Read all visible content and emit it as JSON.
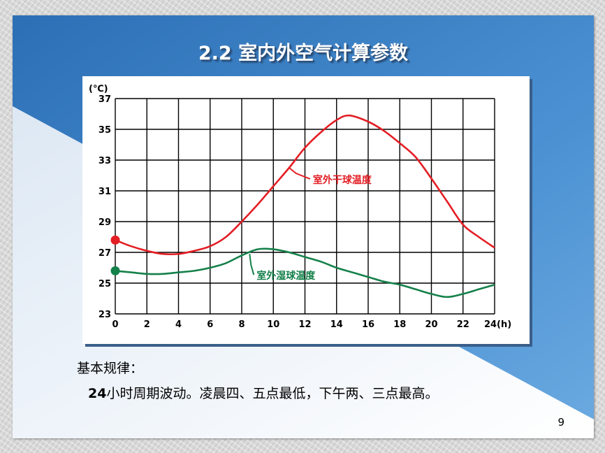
{
  "slide": {
    "title": "2.2 室内外空气计算参数",
    "rule_heading": "基本规律：",
    "rule_number": "24",
    "rule_text": "小时周期波动。凌晨四、五点最低，下午两、三点最高。",
    "page_number": "9",
    "colors": {
      "background_blue": "#3d85c6",
      "accent_shadow": "#3a5f8a"
    }
  },
  "chart_data": {
    "type": "line",
    "title": "",
    "xlabel": "",
    "ylabel": "",
    "y_unit_label": "(℃)",
    "x_unit_label": "(h)",
    "xlim": [
      0,
      24
    ],
    "ylim": [
      23,
      37
    ],
    "x_ticks": [
      0,
      2,
      4,
      6,
      8,
      10,
      12,
      14,
      16,
      18,
      20,
      22,
      24
    ],
    "y_ticks": [
      23,
      25,
      27,
      29,
      31,
      33,
      35,
      37
    ],
    "grid": true,
    "series": [
      {
        "name": "室外干球温度",
        "color": "#e31e24",
        "x": [
          0,
          1,
          2,
          3,
          4,
          5,
          6,
          7,
          8,
          9,
          10,
          11,
          12,
          13,
          14,
          14.8,
          16,
          17,
          18,
          19,
          20,
          21,
          22,
          23,
          24
        ],
        "y": [
          27.8,
          27.4,
          27.1,
          26.9,
          26.9,
          27.1,
          27.4,
          28.0,
          29.0,
          30.1,
          31.3,
          32.5,
          33.8,
          34.8,
          35.6,
          35.9,
          35.5,
          34.9,
          34.1,
          33.2,
          31.8,
          30.3,
          28.8,
          28.0,
          27.3
        ]
      },
      {
        "name": "室外湿球温度",
        "color": "#14804a",
        "x": [
          0,
          1,
          2,
          3,
          4,
          5,
          6,
          7,
          8,
          9,
          10,
          11,
          12,
          13,
          14,
          15,
          16,
          17,
          18,
          19,
          20,
          21,
          22,
          23,
          24
        ],
        "y": [
          25.8,
          25.7,
          25.6,
          25.6,
          25.7,
          25.8,
          26.0,
          26.3,
          26.8,
          27.2,
          27.2,
          27.0,
          26.7,
          26.4,
          26.0,
          25.7,
          25.4,
          25.1,
          24.9,
          24.6,
          24.3,
          24.1,
          24.3,
          24.6,
          24.9
        ]
      }
    ],
    "annotations": [
      {
        "text": "室外干球温度",
        "series": 0,
        "x": 11,
        "y": 32.5
      },
      {
        "text": "室外湿球温度",
        "series": 1,
        "x": 8.5,
        "y": 26.9
      }
    ]
  }
}
